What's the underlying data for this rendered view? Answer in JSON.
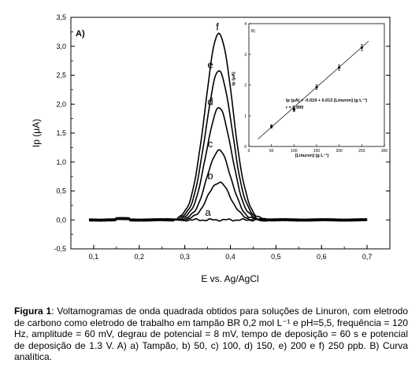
{
  "chart_data": [
    {
      "type": "line",
      "panel_label": "A)",
      "xlabel": "E vs. Ag/AgCl",
      "ylabel": "Ip (μA)",
      "xlim": [
        0.05,
        0.75
      ],
      "ylim": [
        -0.5,
        3.5
      ],
      "x_ticks": [
        "0,1",
        "0,2",
        "0,3",
        "0,4",
        "0,5",
        "0,6",
        "0,7"
      ],
      "y_ticks": [
        "-0,5",
        "0,0",
        "0,5",
        "1,0",
        "1,5",
        "2,0",
        "2,5",
        "3,0",
        "3,5"
      ],
      "peak_potential": 0.375,
      "curve_start": 0.09,
      "curve_end": 0.7,
      "series": [
        {
          "name": "a",
          "peak": 0.0
        },
        {
          "name": "b",
          "peak": 0.65
        },
        {
          "name": "c",
          "peak": 1.2
        },
        {
          "name": "d",
          "peak": 1.93
        },
        {
          "name": "e",
          "peak": 2.57
        },
        {
          "name": "f",
          "peak": 3.22
        }
      ],
      "grid": false
    },
    {
      "type": "scatter",
      "panel_label": "B)",
      "xlabel": "[Linuron] (g L⁻¹)",
      "ylabel": "Ip (μA)",
      "xlim": [
        0,
        300
      ],
      "ylim": [
        0,
        4
      ],
      "x_ticks": [
        "0",
        "50",
        "100",
        "150",
        "200",
        "250",
        "300"
      ],
      "y_ticks": [
        "0",
        "1",
        "2",
        "3",
        "4"
      ],
      "points": [
        {
          "x": 50,
          "y": 0.65
        },
        {
          "x": 100,
          "y": 1.2
        },
        {
          "x": 150,
          "y": 1.93
        },
        {
          "x": 200,
          "y": 2.57
        },
        {
          "x": 250,
          "y": 3.22
        }
      ],
      "fit": {
        "intercept": -0.019,
        "slope": 0.013,
        "x_range": [
          20,
          265
        ]
      },
      "equation": "Ip (μA) = -0.019 + 0.013 [Linuron] (g L⁻¹)",
      "r_text": "r = 0.999"
    }
  ],
  "caption": {
    "label": "Figura 1",
    "text": ": Voltamogramas de onda quadrada obtidos para soluções de Linuron, com eletrodo de carbono como eletrodo de trabalho em tampão BR 0,2 mol L⁻¹ e pH=5,5, frequência = 120 Hz, amplitude = 60 mV, degrau de potencial = 8 mV, tempo de deposição = 60 s e potencial de deposição de 1.3 V.  A) a) Tampão, b) 50, c) 100, d) 150, e) 200 e f) 250 ppb. B) Curva analítica."
  }
}
